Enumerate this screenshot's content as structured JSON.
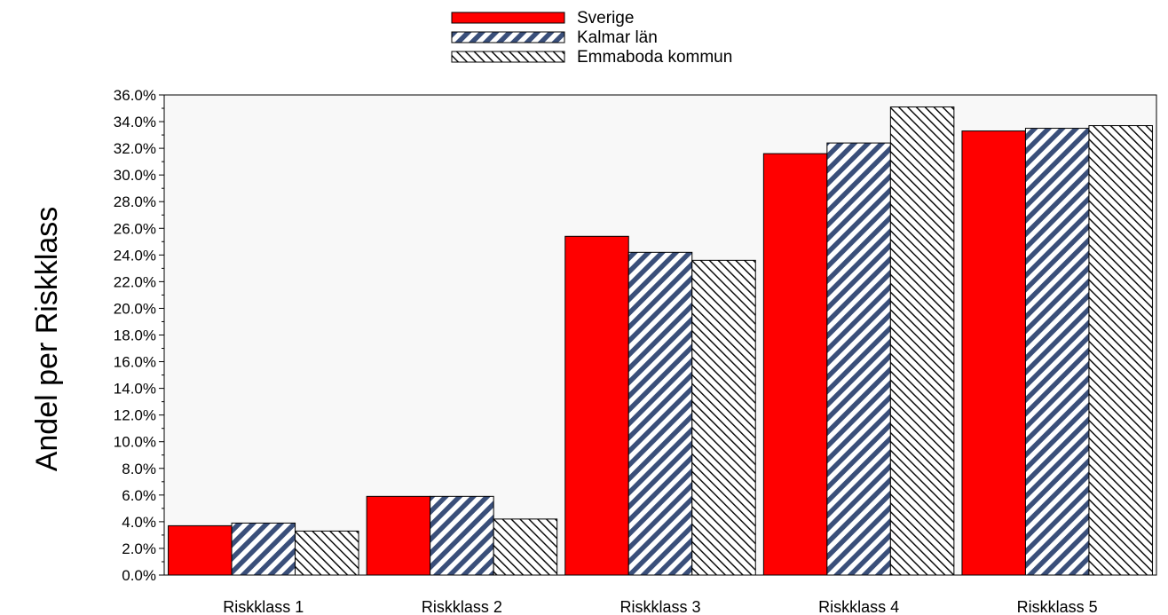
{
  "chart_data": {
    "type": "bar",
    "ylabel": "Andel per Riskklass",
    "xlabel": "",
    "ylim": [
      0,
      36
    ],
    "y_ticks": [
      "0.0%",
      "2.0%",
      "4.0%",
      "6.0%",
      "8.0%",
      "10.0%",
      "12.0%",
      "14.0%",
      "16.0%",
      "18.0%",
      "20.0%",
      "22.0%",
      "24.0%",
      "26.0%",
      "28.0%",
      "30.0%",
      "32.0%",
      "34.0%",
      "36.0%"
    ],
    "categories": [
      "Riskklass 1",
      "Riskklass 2",
      "Riskklass 3",
      "Riskklass 4",
      "Riskklass 5"
    ],
    "series": [
      {
        "name": "Sverige",
        "values": [
          3.7,
          5.9,
          25.4,
          31.6,
          33.3
        ],
        "color": "#ff0000",
        "pattern": "solid"
      },
      {
        "name": "Kalmar län",
        "values": [
          3.9,
          5.9,
          24.2,
          32.4,
          33.5
        ],
        "color": "#3a4f7a",
        "pattern": "diagonal-stripes"
      },
      {
        "name": "Emmaboda kommun",
        "values": [
          3.3,
          4.2,
          23.6,
          35.1,
          33.7
        ],
        "color": "#000000",
        "pattern": "diagonal-hatch"
      }
    ],
    "legend_position": "top-center",
    "grid": false,
    "plot_background": "#f8f8f8"
  }
}
